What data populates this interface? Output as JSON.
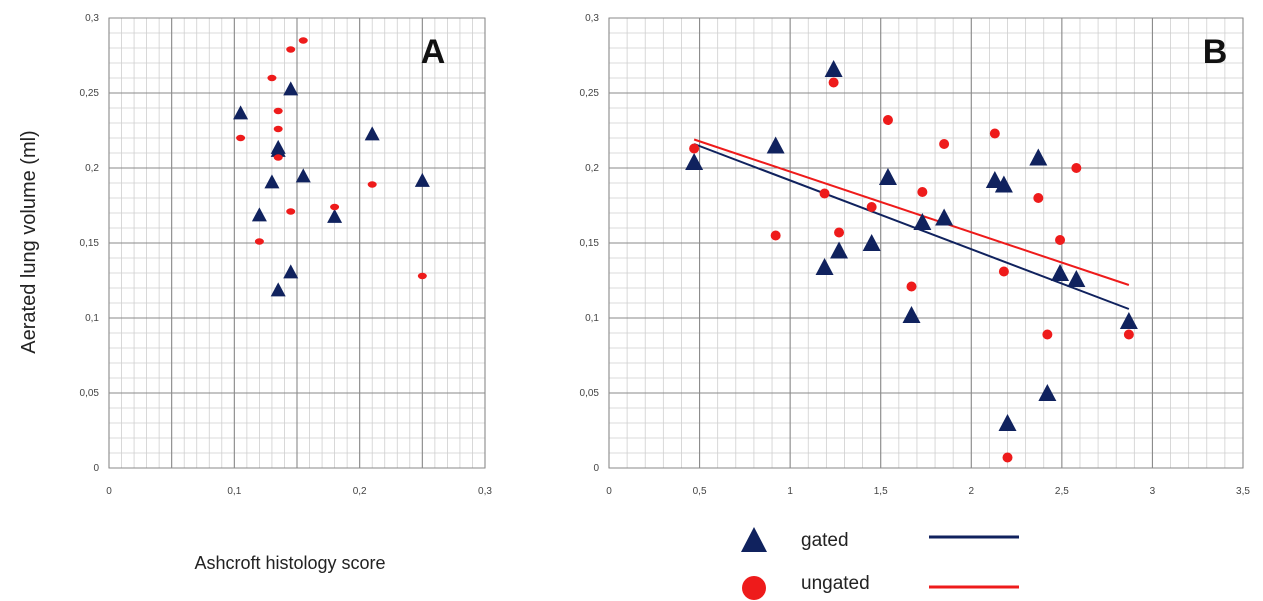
{
  "y_axis_label": "Aerated lung volume (ml)",
  "x_axis_label": "Ashcroft histology score",
  "legend": [
    {
      "label": "gated",
      "color": "#10225e",
      "marker": "triangle"
    },
    {
      "label": "ungated",
      "color": "#ee1b1b",
      "marker": "circle"
    }
  ],
  "chart_data": [
    {
      "type": "scatter",
      "panel": "A",
      "xlim": [
        0,
        0.3
      ],
      "ylim": [
        0,
        0.3
      ],
      "x_ticks": [
        "0",
        "0,05",
        "0,1",
        "0,15",
        "0,2",
        "0,25",
        "0,3"
      ],
      "x_tick_labels": [
        "0",
        "",
        "0,1",
        "",
        "0,2",
        "",
        "0,3"
      ],
      "y_ticks": [
        0,
        0.05,
        0.1,
        0.15,
        0.2,
        0.25,
        0.3
      ],
      "y_tick_labels": [
        "0",
        "0,05",
        "0,1",
        "0,15",
        "0,2",
        "0,25",
        "0,3"
      ],
      "grid": true,
      "series": [
        {
          "name": "gated",
          "color": "#10225e",
          "marker": "triangle",
          "points": [
            [
              0.105,
              0.236
            ],
            [
              0.145,
              0.252
            ],
            [
              0.135,
              0.213
            ],
            [
              0.135,
              0.211
            ],
            [
              0.13,
              0.19
            ],
            [
              0.155,
              0.194
            ],
            [
              0.12,
              0.168
            ],
            [
              0.21,
              0.222
            ],
            [
              0.25,
              0.191
            ],
            [
              0.18,
              0.167
            ],
            [
              0.145,
              0.13
            ],
            [
              0.135,
              0.118
            ]
          ]
        },
        {
          "name": "ungated",
          "color": "#ee1b1b",
          "marker": "circle",
          "points": [
            [
              0.145,
              0.279
            ],
            [
              0.155,
              0.285
            ],
            [
              0.13,
              0.26
            ],
            [
              0.135,
              0.238
            ],
            [
              0.135,
              0.226
            ],
            [
              0.105,
              0.22
            ],
            [
              0.135,
              0.207
            ],
            [
              0.21,
              0.189
            ],
            [
              0.18,
              0.174
            ],
            [
              0.145,
              0.171
            ],
            [
              0.12,
              0.151
            ],
            [
              0.25,
              0.128
            ]
          ]
        }
      ]
    },
    {
      "type": "scatter",
      "panel": "B",
      "xlim": [
        0,
        3.5
      ],
      "ylim": [
        0,
        0.3
      ],
      "x_tick_labels": [
        "0",
        "0,5",
        "1",
        "1,5",
        "2",
        "2,5",
        "3",
        "3,5"
      ],
      "y_tick_labels": [
        "0",
        "0,05",
        "0,1",
        "0,15",
        "0,2",
        "0,25",
        "0,3"
      ],
      "grid": true,
      "series": [
        {
          "name": "gated",
          "color": "#10225e",
          "marker": "triangle",
          "points": [
            [
              0.47,
              0.203
            ],
            [
              0.92,
              0.214
            ],
            [
              1.24,
              0.265
            ],
            [
              1.19,
              0.133
            ],
            [
              1.27,
              0.144
            ],
            [
              1.45,
              0.149
            ],
            [
              1.54,
              0.193
            ],
            [
              1.67,
              0.101
            ],
            [
              1.73,
              0.163
            ],
            [
              1.85,
              0.166
            ],
            [
              2.13,
              0.191
            ],
            [
              2.18,
              0.188
            ],
            [
              2.37,
              0.206
            ],
            [
              2.2,
              0.029
            ],
            [
              2.42,
              0.049
            ],
            [
              2.49,
              0.129
            ],
            [
              2.58,
              0.125
            ],
            [
              2.87,
              0.097
            ]
          ],
          "trendline": [
            [
              0.47,
              0.216
            ],
            [
              2.87,
              0.106
            ]
          ]
        },
        {
          "name": "ungated",
          "color": "#ee1b1b",
          "marker": "circle",
          "points": [
            [
              0.47,
              0.213
            ],
            [
              0.92,
              0.155
            ],
            [
              1.24,
              0.257
            ],
            [
              1.19,
              0.183
            ],
            [
              1.27,
              0.157
            ],
            [
              1.45,
              0.174
            ],
            [
              1.54,
              0.232
            ],
            [
              1.67,
              0.121
            ],
            [
              1.73,
              0.184
            ],
            [
              1.85,
              0.216
            ],
            [
              2.13,
              0.223
            ],
            [
              2.18,
              0.131
            ],
            [
              2.37,
              0.18
            ],
            [
              2.2,
              0.007
            ],
            [
              2.42,
              0.089
            ],
            [
              2.49,
              0.152
            ],
            [
              2.58,
              0.2
            ],
            [
              2.87,
              0.089
            ]
          ],
          "trendline": [
            [
              0.47,
              0.219
            ],
            [
              2.87,
              0.122
            ]
          ]
        }
      ]
    }
  ]
}
